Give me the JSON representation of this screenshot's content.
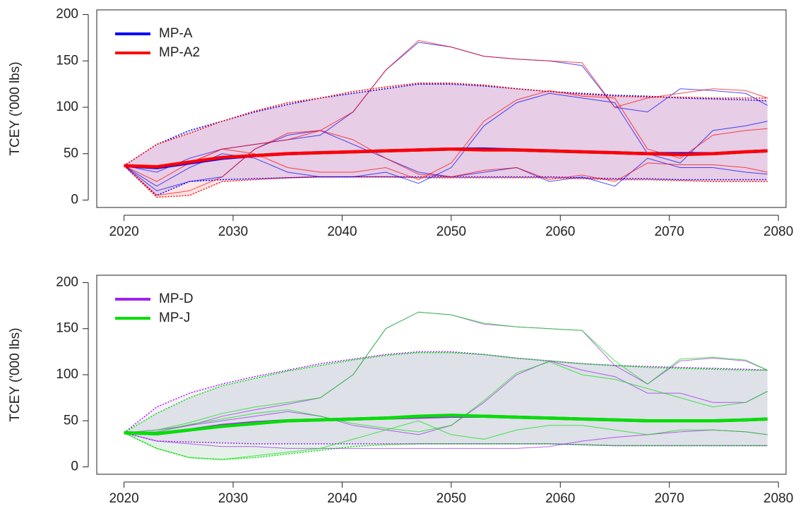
{
  "chart_data": [
    {
      "type": "line",
      "ylabel": "TCEY ('000 lbs)",
      "x": [
        2020,
        2023,
        2026,
        2029,
        2032,
        2035,
        2038,
        2041,
        2044,
        2047,
        2050,
        2053,
        2056,
        2059,
        2062,
        2065,
        2068,
        2071,
        2074,
        2077,
        2079
      ],
      "xlim": [
        2017.5,
        2080.7
      ],
      "ylim": [
        -8,
        205
      ],
      "xticks": [
        2020,
        2030,
        2040,
        2050,
        2060,
        2070,
        2080
      ],
      "yticks": [
        0,
        50,
        100,
        150,
        200
      ],
      "legend": "top-left",
      "series": [
        {
          "name": "MP-A",
          "color": "#0000ff",
          "band_color": "rgba(0,0,255,0.10)",
          "median": [
            37,
            35,
            40,
            45,
            48,
            50,
            51,
            52,
            53,
            54,
            55,
            55,
            54,
            53,
            52,
            51,
            50,
            50,
            50,
            52,
            53
          ],
          "upper": [
            37,
            60,
            75,
            85,
            95,
            103,
            110,
            115,
            120,
            125,
            125,
            123,
            120,
            117,
            115,
            113,
            112,
            110,
            109,
            108,
            107
          ],
          "lower": [
            37,
            5,
            20,
            22,
            23,
            24,
            25,
            25,
            25,
            25,
            25,
            25,
            25,
            25,
            24,
            23,
            23,
            22,
            22,
            22,
            22
          ],
          "traces": [
            [
              37,
              30,
              45,
              55,
              60,
              65,
              70,
              95,
              140,
              170,
              165,
              155,
              152,
              150,
              145,
              100,
              95,
              120,
              118,
              115,
              102
            ],
            [
              37,
              15,
              35,
              50,
              45,
              30,
              25,
              25,
              30,
              18,
              35,
              80,
              105,
              115,
              110,
              105,
              50,
              40,
              75,
              80,
              85
            ],
            [
              37,
              10,
              20,
              25,
              55,
              70,
              75,
              60,
              45,
              30,
              25,
              30,
              35,
              20,
              25,
              15,
              45,
              35,
              35,
              30,
              28
            ]
          ]
        },
        {
          "name": "MP-A2",
          "color": "#ff0000",
          "band_color": "rgba(255,0,0,0.10)",
          "median": [
            37,
            36,
            41,
            46,
            48,
            50,
            51,
            52,
            53,
            54,
            55,
            54,
            54,
            53,
            52,
            51,
            50,
            49,
            50,
            52,
            53
          ],
          "upper": [
            37,
            60,
            72,
            85,
            96,
            105,
            110,
            117,
            122,
            126,
            126,
            124,
            120,
            117,
            114,
            112,
            111,
            111,
            110,
            110,
            110
          ],
          "lower": [
            37,
            3,
            5,
            20,
            22,
            24,
            25,
            25,
            25,
            24,
            24,
            24,
            24,
            24,
            23,
            22,
            22,
            21,
            20,
            20,
            20
          ],
          "traces": [
            [
              37,
              35,
              40,
              55,
              60,
              65,
              75,
              95,
              140,
              172,
              165,
              155,
              152,
              150,
              148,
              100,
              110,
              115,
              120,
              118,
              110
            ],
            [
              37,
              20,
              40,
              55,
              50,
              35,
              30,
              30,
              35,
              22,
              40,
              85,
              108,
              118,
              112,
              110,
              55,
              45,
              70,
              75,
              77
            ],
            [
              37,
              5,
              10,
              25,
              55,
              72,
              75,
              65,
              45,
              28,
              25,
              32,
              35,
              22,
              27,
              20,
              40,
              38,
              38,
              35,
              30
            ]
          ]
        }
      ]
    },
    {
      "type": "line",
      "ylabel": "TCEY ('000 lbs)",
      "x": [
        2020,
        2023,
        2026,
        2029,
        2032,
        2035,
        2038,
        2041,
        2044,
        2047,
        2050,
        2053,
        2056,
        2059,
        2062,
        2065,
        2068,
        2071,
        2074,
        2077,
        2079
      ],
      "xlim": [
        2017.5,
        2080.7
      ],
      "ylim": [
        -8,
        208
      ],
      "xticks": [
        2020,
        2030,
        2040,
        2050,
        2060,
        2070,
        2080
      ],
      "yticks": [
        0,
        50,
        100,
        150,
        200
      ],
      "legend": "top-left",
      "series": [
        {
          "name": "MP-D",
          "color": "#a020f0",
          "band_color": "rgba(160,32,240,0.08)",
          "median": [
            37,
            36,
            40,
            45,
            48,
            50,
            51,
            52,
            53,
            54,
            55,
            55,
            54,
            53,
            52,
            51,
            50,
            50,
            50,
            51,
            52
          ],
          "upper": [
            37,
            65,
            80,
            90,
            98,
            105,
            112,
            117,
            122,
            125,
            125,
            122,
            118,
            115,
            112,
            110,
            109,
            108,
            107,
            106,
            105
          ],
          "lower": [
            37,
            28,
            27,
            26,
            25,
            25,
            25,
            25,
            25,
            25,
            25,
            25,
            25,
            25,
            24,
            23,
            23,
            23,
            23,
            23,
            23
          ],
          "traces": [
            [
              37,
              40,
              45,
              55,
              62,
              68,
              75,
              100,
              150,
              168,
              165,
              155,
              152,
              150,
              148,
              110,
              90,
              115,
              118,
              115,
              105
            ],
            [
              37,
              38,
              45,
              50,
              55,
              60,
              55,
              45,
              40,
              35,
              45,
              70,
              100,
              115,
              105,
              98,
              80,
              80,
              70,
              70,
              82
            ],
            [
              37,
              28,
              25,
              22,
              22,
              20,
              20,
              20,
              20,
              20,
              20,
              20,
              20,
              22,
              28,
              32,
              35,
              38,
              40,
              38,
              35
            ]
          ]
        },
        {
          "name": "MP-J",
          "color": "#00e000",
          "band_color": "rgba(0,120,40,0.10)",
          "median": [
            37,
            36,
            40,
            44,
            47,
            50,
            51,
            52,
            53,
            55,
            56,
            55,
            54,
            53,
            52,
            51,
            50,
            50,
            50,
            51,
            52
          ],
          "upper": [
            37,
            58,
            75,
            88,
            96,
            104,
            110,
            116,
            121,
            124,
            124,
            122,
            118,
            115,
            112,
            110,
            108,
            107,
            106,
            105,
            105
          ],
          "lower": [
            37,
            20,
            10,
            8,
            10,
            14,
            18,
            22,
            24,
            25,
            25,
            25,
            25,
            25,
            24,
            23,
            23,
            23,
            23,
            23,
            23
          ],
          "traces": [
            [
              37,
              40,
              48,
              58,
              65,
              70,
              75,
              100,
              150,
              168,
              165,
              156,
              152,
              150,
              148,
              115,
              90,
              117,
              119,
              116,
              105
            ],
            [
              37,
              38,
              46,
              52,
              58,
              62,
              55,
              47,
              42,
              38,
              45,
              72,
              102,
              114,
              100,
              95,
              85,
              75,
              65,
              70,
              82
            ],
            [
              37,
              20,
              10,
              8,
              12,
              16,
              20,
              30,
              40,
              50,
              35,
              30,
              40,
              45,
              45,
              40,
              35,
              40,
              40,
              38,
              35
            ]
          ]
        }
      ]
    }
  ]
}
